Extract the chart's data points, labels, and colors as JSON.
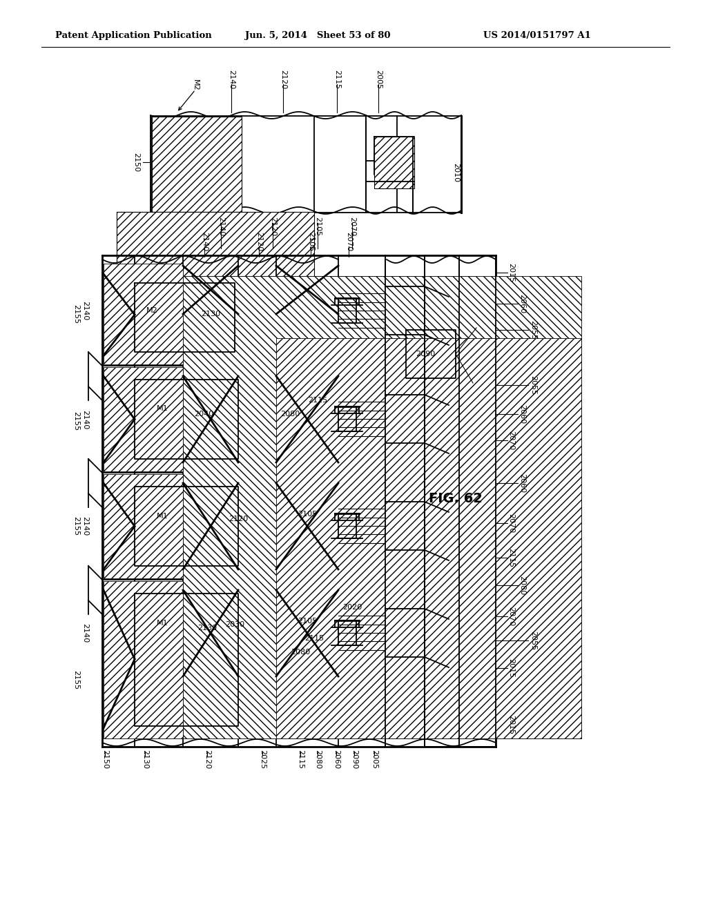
{
  "header_left": "Patent Application Publication",
  "header_center": "Jun. 5, 2014   Sheet 53 of 80",
  "header_right": "US 2014/0151797 A1",
  "fig_label": "FIG. 62",
  "bg_color": "#ffffff",
  "line_color": "#000000"
}
